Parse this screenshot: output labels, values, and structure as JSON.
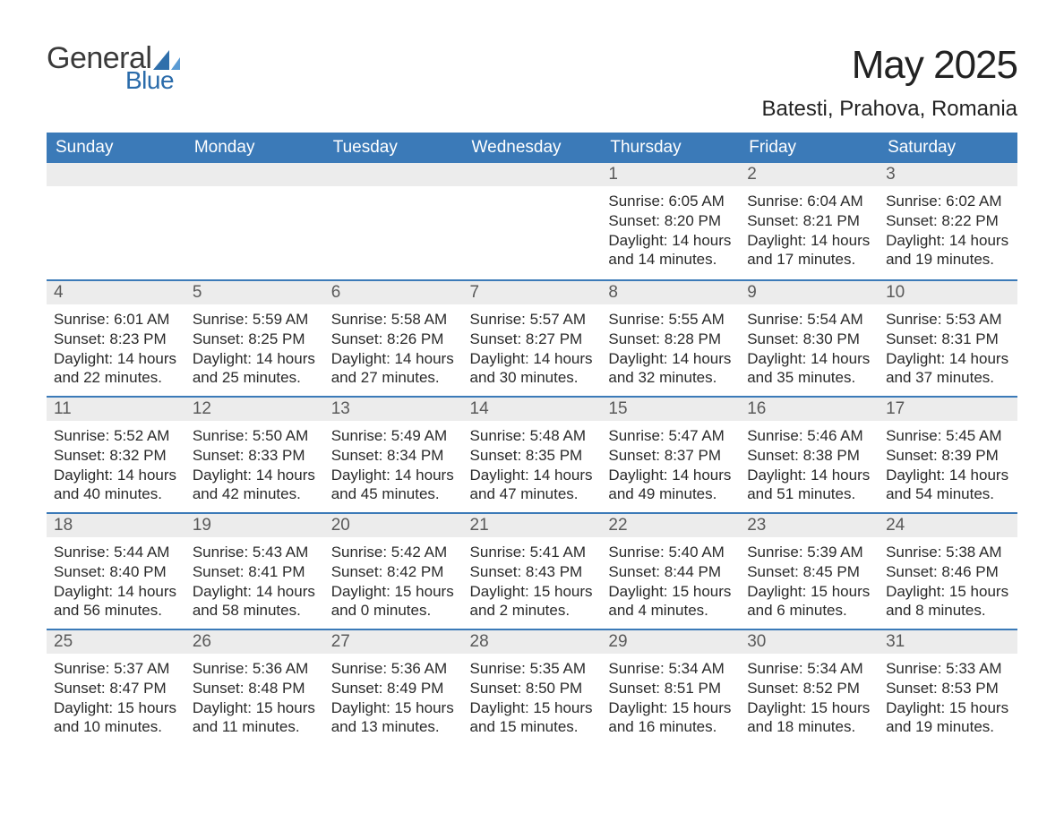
{
  "brand": {
    "word1": "General",
    "word2": "Blue",
    "sail_fill": "#2f6fab",
    "sail_fill_light": "#5a9bd4"
  },
  "title": {
    "month_year": "May 2025",
    "location": "Batesti, Prahova, Romania"
  },
  "style": {
    "header_bg": "#3b7ab8",
    "grey_band": "#ececec",
    "rule_blue": "#3b7ab8"
  },
  "weekday_labels": [
    "Sunday",
    "Monday",
    "Tuesday",
    "Wednesday",
    "Thursday",
    "Friday",
    "Saturday"
  ],
  "calendar": {
    "blank_leading_cells": 4,
    "days": [
      {
        "d": 1,
        "sunrise": "6:05 AM",
        "sunset": "8:20 PM",
        "daylight": "14 hours and 14 minutes."
      },
      {
        "d": 2,
        "sunrise": "6:04 AM",
        "sunset": "8:21 PM",
        "daylight": "14 hours and 17 minutes."
      },
      {
        "d": 3,
        "sunrise": "6:02 AM",
        "sunset": "8:22 PM",
        "daylight": "14 hours and 19 minutes."
      },
      {
        "d": 4,
        "sunrise": "6:01 AM",
        "sunset": "8:23 PM",
        "daylight": "14 hours and 22 minutes."
      },
      {
        "d": 5,
        "sunrise": "5:59 AM",
        "sunset": "8:25 PM",
        "daylight": "14 hours and 25 minutes."
      },
      {
        "d": 6,
        "sunrise": "5:58 AM",
        "sunset": "8:26 PM",
        "daylight": "14 hours and 27 minutes."
      },
      {
        "d": 7,
        "sunrise": "5:57 AM",
        "sunset": "8:27 PM",
        "daylight": "14 hours and 30 minutes."
      },
      {
        "d": 8,
        "sunrise": "5:55 AM",
        "sunset": "8:28 PM",
        "daylight": "14 hours and 32 minutes."
      },
      {
        "d": 9,
        "sunrise": "5:54 AM",
        "sunset": "8:30 PM",
        "daylight": "14 hours and 35 minutes."
      },
      {
        "d": 10,
        "sunrise": "5:53 AM",
        "sunset": "8:31 PM",
        "daylight": "14 hours and 37 minutes."
      },
      {
        "d": 11,
        "sunrise": "5:52 AM",
        "sunset": "8:32 PM",
        "daylight": "14 hours and 40 minutes."
      },
      {
        "d": 12,
        "sunrise": "5:50 AM",
        "sunset": "8:33 PM",
        "daylight": "14 hours and 42 minutes."
      },
      {
        "d": 13,
        "sunrise": "5:49 AM",
        "sunset": "8:34 PM",
        "daylight": "14 hours and 45 minutes."
      },
      {
        "d": 14,
        "sunrise": "5:48 AM",
        "sunset": "8:35 PM",
        "daylight": "14 hours and 47 minutes."
      },
      {
        "d": 15,
        "sunrise": "5:47 AM",
        "sunset": "8:37 PM",
        "daylight": "14 hours and 49 minutes."
      },
      {
        "d": 16,
        "sunrise": "5:46 AM",
        "sunset": "8:38 PM",
        "daylight": "14 hours and 51 minutes."
      },
      {
        "d": 17,
        "sunrise": "5:45 AM",
        "sunset": "8:39 PM",
        "daylight": "14 hours and 54 minutes."
      },
      {
        "d": 18,
        "sunrise": "5:44 AM",
        "sunset": "8:40 PM",
        "daylight": "14 hours and 56 minutes."
      },
      {
        "d": 19,
        "sunrise": "5:43 AM",
        "sunset": "8:41 PM",
        "daylight": "14 hours and 58 minutes."
      },
      {
        "d": 20,
        "sunrise": "5:42 AM",
        "sunset": "8:42 PM",
        "daylight": "15 hours and 0 minutes."
      },
      {
        "d": 21,
        "sunrise": "5:41 AM",
        "sunset": "8:43 PM",
        "daylight": "15 hours and 2 minutes."
      },
      {
        "d": 22,
        "sunrise": "5:40 AM",
        "sunset": "8:44 PM",
        "daylight": "15 hours and 4 minutes."
      },
      {
        "d": 23,
        "sunrise": "5:39 AM",
        "sunset": "8:45 PM",
        "daylight": "15 hours and 6 minutes."
      },
      {
        "d": 24,
        "sunrise": "5:38 AM",
        "sunset": "8:46 PM",
        "daylight": "15 hours and 8 minutes."
      },
      {
        "d": 25,
        "sunrise": "5:37 AM",
        "sunset": "8:47 PM",
        "daylight": "15 hours and 10 minutes."
      },
      {
        "d": 26,
        "sunrise": "5:36 AM",
        "sunset": "8:48 PM",
        "daylight": "15 hours and 11 minutes."
      },
      {
        "d": 27,
        "sunrise": "5:36 AM",
        "sunset": "8:49 PM",
        "daylight": "15 hours and 13 minutes."
      },
      {
        "d": 28,
        "sunrise": "5:35 AM",
        "sunset": "8:50 PM",
        "daylight": "15 hours and 15 minutes."
      },
      {
        "d": 29,
        "sunrise": "5:34 AM",
        "sunset": "8:51 PM",
        "daylight": "15 hours and 16 minutes."
      },
      {
        "d": 30,
        "sunrise": "5:34 AM",
        "sunset": "8:52 PM",
        "daylight": "15 hours and 18 minutes."
      },
      {
        "d": 31,
        "sunrise": "5:33 AM",
        "sunset": "8:53 PM",
        "daylight": "15 hours and 19 minutes."
      }
    ]
  },
  "labels": {
    "sunrise_prefix": "Sunrise: ",
    "sunset_prefix": "Sunset: ",
    "daylight_prefix": "Daylight: "
  }
}
